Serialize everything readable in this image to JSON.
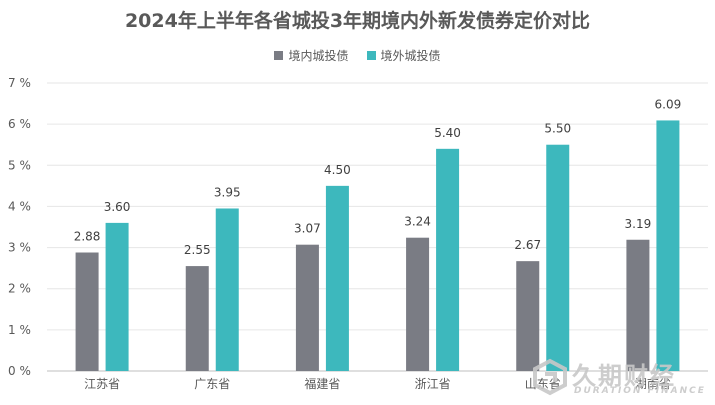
{
  "chart_data": {
    "type": "bar",
    "title": "2024年上半年各省城投3年期境内外新发债券定价对比",
    "categories": [
      "江苏省",
      "广东省",
      "福建省",
      "浙江省",
      "山东省",
      "湖南省"
    ],
    "series": [
      {
        "name": "境内城投债",
        "color": "#7a7c84",
        "values": [
          2.88,
          2.55,
          3.07,
          3.24,
          2.67,
          3.19
        ]
      },
      {
        "name": "境外城投债",
        "color": "#3db8bd",
        "values": [
          3.6,
          3.95,
          4.5,
          5.4,
          5.5,
          6.09
        ]
      }
    ],
    "yticks": [
      "0 %",
      "1 %",
      "2 %",
      "3 %",
      "4 %",
      "5 %",
      "6 %",
      "7 %"
    ],
    "ylim": [
      0,
      7
    ],
    "legend_position": "top-center",
    "grid": true
  },
  "watermark": {
    "text_cn": "久期财经",
    "text_en": "DURATION FINANCE"
  }
}
